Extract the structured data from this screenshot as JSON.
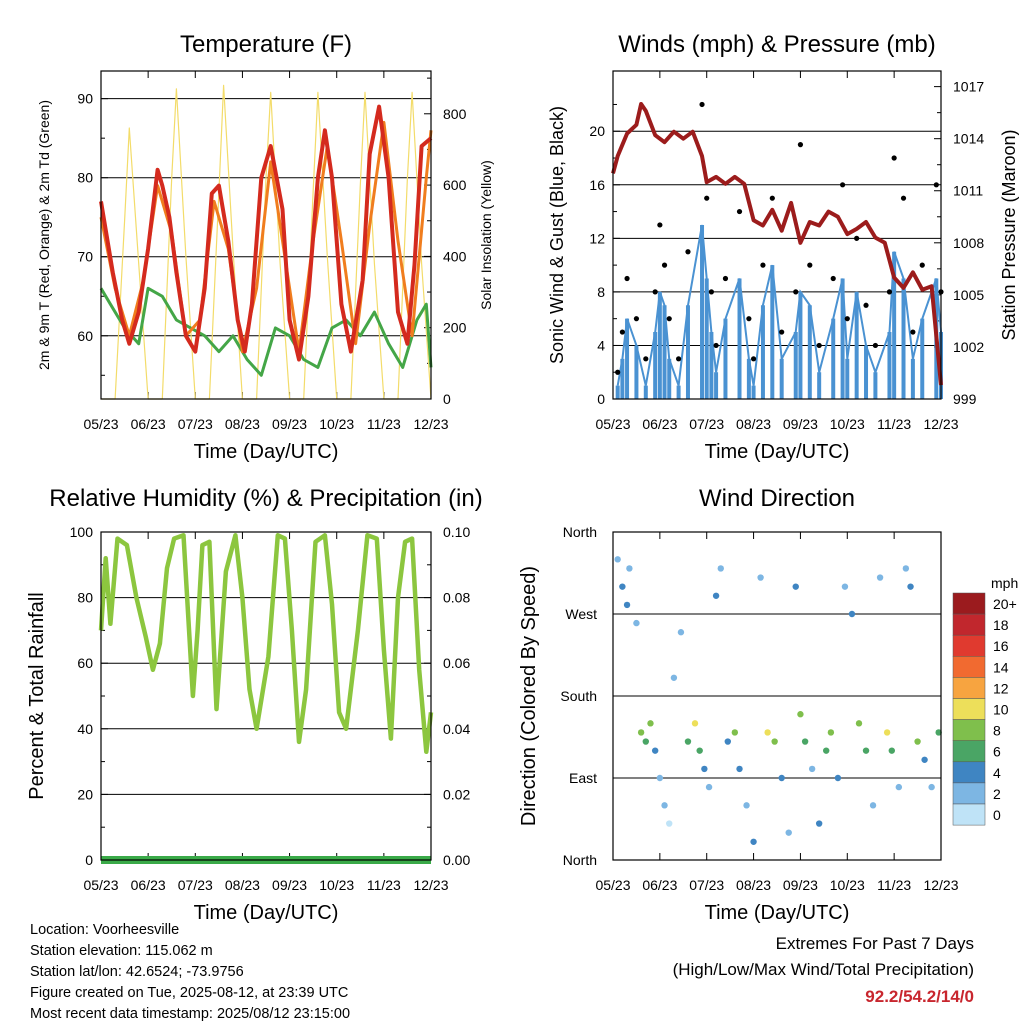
{
  "chart_data": [
    {
      "type": "line",
      "title": "Temperature (F)",
      "xlabel": "Time (Day/UTC)",
      "ylabel": "2m & 9m T (Red, Orange) & 2m Td (Green)",
      "y2label": "Solar Insolation (Yellow)",
      "x_ticks": [
        "05/23",
        "06/23",
        "07/23",
        "08/23",
        "09/23",
        "10/23",
        "11/23",
        "12/23"
      ],
      "ylim": [
        52,
        93.5
      ],
      "y_ticks": [
        "60",
        "70",
        "80",
        "90"
      ],
      "y2lim": [
        0,
        920
      ],
      "y2_ticks": [
        "0",
        "200",
        "400",
        "600",
        "800"
      ],
      "series": [
        {
          "color": "#d42a1e",
          "x": [
            0,
            0.25,
            0.45,
            0.6,
            0.8,
            1.0,
            1.2,
            1.3,
            1.45,
            1.6,
            1.8,
            2.0,
            2.2,
            2.35,
            2.5,
            2.7,
            2.9,
            3.05,
            3.2,
            3.4,
            3.6,
            3.85,
            4.0,
            4.2,
            4.4,
            4.6,
            4.75,
            4.9,
            5.1,
            5.3,
            5.55,
            5.7,
            5.9,
            6.1,
            6.3,
            6.5,
            6.65,
            6.8,
            7.0
          ],
          "values": [
            77,
            68,
            62,
            59,
            63,
            71,
            81,
            79,
            75,
            68,
            60,
            58,
            66,
            78,
            79,
            72,
            62,
            58,
            64,
            80,
            84,
            76,
            62,
            57,
            65,
            80,
            86,
            80,
            64,
            58,
            67,
            83,
            89,
            80,
            63,
            59,
            69,
            84,
            85
          ]
        },
        {
          "color": "#f07d1e",
          "x": [
            0,
            0.3,
            0.6,
            0.9,
            1.2,
            1.5,
            1.8,
            2.1,
            2.4,
            2.7,
            3.0,
            3.3,
            3.6,
            3.9,
            4.2,
            4.5,
            4.8,
            5.1,
            5.4,
            5.7,
            6.0,
            6.3,
            6.6,
            6.9,
            7.0
          ],
          "values": [
            75,
            66,
            60,
            67,
            79,
            73,
            60,
            62,
            77,
            71,
            58,
            66,
            82,
            70,
            58,
            72,
            84,
            72,
            59,
            74,
            87,
            72,
            60,
            80,
            86
          ]
        },
        {
          "color": "#44a647",
          "x": [
            0,
            0.2,
            0.5,
            0.8,
            1.0,
            1.3,
            1.6,
            1.9,
            2.2,
            2.5,
            2.8,
            3.1,
            3.4,
            3.7,
            4.0,
            4.3,
            4.6,
            4.9,
            5.2,
            5.5,
            5.8,
            6.1,
            6.4,
            6.7,
            6.9,
            7.0
          ],
          "values": [
            66,
            64,
            61,
            59,
            66,
            65,
            62,
            61,
            60,
            58,
            60,
            57,
            55,
            61,
            60,
            57,
            56,
            61,
            62,
            60,
            63,
            59,
            56,
            62,
            64,
            56
          ]
        },
        {
          "color": "#f3dc6a",
          "x": [
            0,
            0.3,
            0.5,
            0.6,
            0.8,
            1.0,
            1.3,
            1.5,
            1.6,
            1.8,
            2.0,
            2.3,
            2.5,
            2.6,
            2.8,
            3.0,
            3.3,
            3.5,
            3.6,
            3.8,
            4.0,
            4.3,
            4.5,
            4.6,
            4.8,
            5.0,
            5.3,
            5.5,
            5.6,
            5.8,
            6.0,
            6.3,
            6.5,
            6.6,
            6.8,
            7.0
          ],
          "values": [
            0,
            0,
            500,
            760,
            380,
            0,
            0,
            620,
            870,
            400,
            0,
            0,
            580,
            880,
            420,
            0,
            0,
            620,
            860,
            380,
            0,
            0,
            580,
            860,
            400,
            0,
            0,
            600,
            860,
            380,
            0,
            0,
            620,
            860,
            380,
            0
          ],
          "axis": "right"
        }
      ]
    },
    {
      "type": "scatter",
      "title": "Winds (mph) & Pressure (mb)",
      "xlabel": "Time (Day/UTC)",
      "ylabel": "Sonic Wind & Gust (Blue, Black)",
      "y2label": "Station Pressure (Maroon)",
      "x_ticks": [
        "05/23",
        "06/23",
        "07/23",
        "08/23",
        "09/23",
        "10/23",
        "11/23",
        "12/23"
      ],
      "ylim": [
        0,
        24.5
      ],
      "y_ticks": [
        "0",
        "4",
        "8",
        "12",
        "16",
        "20"
      ],
      "y2lim": [
        999,
        1017.9
      ],
      "y2_ticks": [
        "999",
        "1002",
        "1005",
        "1008",
        "1011",
        "1014",
        "1017"
      ],
      "series": [
        {
          "color": "#000000",
          "x": [
            0.1,
            0.2,
            0.3,
            0.5,
            0.7,
            0.9,
            1.0,
            1.1,
            1.2,
            1.4,
            1.6,
            1.9,
            2.0,
            2.1,
            2.2,
            2.4,
            2.7,
            2.9,
            3.0,
            3.2,
            3.4,
            3.6,
            3.9,
            4.0,
            4.2,
            4.4,
            4.7,
            4.9,
            5.0,
            5.2,
            5.4,
            5.6,
            5.9,
            6.0,
            6.2,
            6.4,
            6.6,
            6.9,
            7.0
          ],
          "values": [
            2,
            5,
            9,
            6,
            3,
            8,
            13,
            10,
            6,
            3,
            11,
            22,
            15,
            8,
            4,
            9,
            14,
            6,
            3,
            10,
            15,
            5,
            8,
            19,
            10,
            4,
            9,
            16,
            6,
            12,
            7,
            4,
            8,
            18,
            15,
            5,
            10,
            16,
            8
          ]
        },
        {
          "color": "#4a92d2",
          "x": [
            0.1,
            0.2,
            0.3,
            0.5,
            0.7,
            0.9,
            1.0,
            1.1,
            1.2,
            1.4,
            1.6,
            1.9,
            2.0,
            2.1,
            2.2,
            2.4,
            2.7,
            2.9,
            3.0,
            3.2,
            3.4,
            3.6,
            3.9,
            4.0,
            4.2,
            4.4,
            4.7,
            4.9,
            5.0,
            5.2,
            5.4,
            5.6,
            5.9,
            6.0,
            6.2,
            6.4,
            6.6,
            6.9,
            7.0
          ],
          "values": [
            1,
            3,
            6,
            4,
            1,
            5,
            8,
            7,
            3,
            1,
            7,
            13,
            9,
            5,
            2,
            6,
            9,
            3,
            1,
            7,
            10,
            3,
            5,
            8,
            7,
            2,
            6,
            9,
            3,
            8,
            4,
            2,
            5,
            11,
            9,
            3,
            6,
            9,
            5
          ]
        },
        {
          "color": "#9c1c1c",
          "x": [
            0,
            0.1,
            0.3,
            0.5,
            0.6,
            0.7,
            0.9,
            1.1,
            1.3,
            1.5,
            1.7,
            1.9,
            2.0,
            2.2,
            2.4,
            2.6,
            2.8,
            3.0,
            3.2,
            3.4,
            3.6,
            3.8,
            4.0,
            4.2,
            4.4,
            4.6,
            4.8,
            5.0,
            5.2,
            5.4,
            5.6,
            5.8,
            6.0,
            6.2,
            6.4,
            6.6,
            6.8,
            7.0
          ],
          "values": [
            1012,
            1013,
            1014.3,
            1014.8,
            1016,
            1015.6,
            1014.2,
            1013.8,
            1014.4,
            1014,
            1014.4,
            1013,
            1011.5,
            1011.8,
            1011.4,
            1011.8,
            1011.4,
            1009.3,
            1009,
            1009.9,
            1008.7,
            1010.3,
            1008,
            1009.2,
            1009,
            1009.8,
            1009.5,
            1008.5,
            1008.8,
            1009.2,
            1008.3,
            1008,
            1006,
            1005.4,
            1006.3,
            1005.3,
            1005.5,
            999.8
          ]
        }
      ]
    },
    {
      "type": "line",
      "title": "Relative Humidity (%) & Precipitation (in)",
      "xlabel": "Time (Day/UTC)",
      "ylabel": "Percent & Total Rainfall",
      "x_ticks": [
        "05/23",
        "06/23",
        "07/23",
        "08/23",
        "09/23",
        "10/23",
        "11/23",
        "12/23"
      ],
      "ylim": [
        0,
        100
      ],
      "y_ticks": [
        "0",
        "20",
        "40",
        "60",
        "80",
        "100"
      ],
      "y2lim": [
        0,
        0.1
      ],
      "y2_ticks": [
        "0.00",
        "0.02",
        "0.04",
        "0.06",
        "0.08",
        "0.10"
      ],
      "series": [
        {
          "color": "#8cc63f",
          "x": [
            0,
            0.1,
            0.2,
            0.35,
            0.55,
            0.75,
            0.95,
            1.1,
            1.25,
            1.4,
            1.55,
            1.75,
            1.95,
            2.05,
            2.15,
            2.3,
            2.45,
            2.65,
            2.85,
            3.0,
            3.15,
            3.3,
            3.55,
            3.75,
            3.9,
            4.05,
            4.2,
            4.35,
            4.55,
            4.75,
            4.9,
            5.05,
            5.2,
            5.45,
            5.65,
            5.85,
            6.0,
            6.15,
            6.3,
            6.45,
            6.6,
            6.75,
            6.9,
            7.0
          ],
          "values": [
            70,
            92,
            72,
            98,
            96,
            80,
            68,
            58,
            66,
            89,
            98,
            99,
            50,
            70,
            96,
            97,
            46,
            88,
            99,
            80,
            52,
            40,
            62,
            99,
            98,
            70,
            36,
            52,
            97,
            99,
            78,
            45,
            40,
            70,
            99,
            98,
            64,
            37,
            80,
            97,
            98,
            58,
            33,
            45
          ]
        },
        {
          "color": "#3aaa48",
          "x": [
            0,
            7.0
          ],
          "values": [
            0,
            0
          ],
          "axis": "right"
        }
      ]
    },
    {
      "type": "scatter",
      "title": "Wind Direction",
      "xlabel": "Time (Day/UTC)",
      "ylabel": "Direction (Colored By Speed)",
      "x_ticks": [
        "05/23",
        "06/23",
        "07/23",
        "08/23",
        "09/23",
        "10/23",
        "11/23",
        "12/23"
      ],
      "y_ticks": [
        "North",
        "East",
        "South",
        "West",
        "North"
      ],
      "legend_title": "mph",
      "legend": [
        "20+",
        "18",
        "16",
        "14",
        "12",
        "10",
        "8",
        "6",
        "4",
        "2",
        "0"
      ],
      "legend_colors": [
        "#9b1b1e",
        "#c1272d",
        "#e03a2f",
        "#f16a30",
        "#f7a440",
        "#eddf5a",
        "#7fbf4c",
        "#4aa565",
        "#3f85c2",
        "#7db6e3",
        "#bfe3f7"
      ],
      "points": [
        {
          "t": 0.1,
          "d": 330,
          "s": 2
        },
        {
          "t": 0.2,
          "d": 300,
          "s": 4
        },
        {
          "t": 0.3,
          "d": 280,
          "s": 4
        },
        {
          "t": 0.35,
          "d": 320,
          "s": 2
        },
        {
          "t": 0.5,
          "d": 260,
          "s": 2
        },
        {
          "t": 0.6,
          "d": 140,
          "s": 8
        },
        {
          "t": 0.7,
          "d": 130,
          "s": 6
        },
        {
          "t": 0.8,
          "d": 150,
          "s": 8
        },
        {
          "t": 0.9,
          "d": 120,
          "s": 4
        },
        {
          "t": 1.0,
          "d": 90,
          "s": 2
        },
        {
          "t": 1.1,
          "d": 60,
          "s": 2
        },
        {
          "t": 1.2,
          "d": 40,
          "s": 0
        },
        {
          "t": 1.3,
          "d": 200,
          "s": 2
        },
        {
          "t": 1.45,
          "d": 250,
          "s": 2
        },
        {
          "t": 1.6,
          "d": 130,
          "s": 6
        },
        {
          "t": 1.75,
          "d": 150,
          "s": 10
        },
        {
          "t": 1.85,
          "d": 120,
          "s": 6
        },
        {
          "t": 1.95,
          "d": 100,
          "s": 4
        },
        {
          "t": 2.05,
          "d": 80,
          "s": 2
        },
        {
          "t": 2.2,
          "d": 290,
          "s": 4
        },
        {
          "t": 2.3,
          "d": 320,
          "s": 2
        },
        {
          "t": 2.45,
          "d": 130,
          "s": 4
        },
        {
          "t": 2.6,
          "d": 140,
          "s": 8
        },
        {
          "t": 2.7,
          "d": 100,
          "s": 4
        },
        {
          "t": 2.85,
          "d": 60,
          "s": 2
        },
        {
          "t": 3.0,
          "d": 20,
          "s": 4
        },
        {
          "t": 3.15,
          "d": 310,
          "s": 2
        },
        {
          "t": 3.3,
          "d": 140,
          "s": 10
        },
        {
          "t": 3.45,
          "d": 130,
          "s": 8
        },
        {
          "t": 3.6,
          "d": 90,
          "s": 4
        },
        {
          "t": 3.75,
          "d": 30,
          "s": 2
        },
        {
          "t": 3.9,
          "d": 300,
          "s": 4
        },
        {
          "t": 4.0,
          "d": 160,
          "s": 8
        },
        {
          "t": 4.1,
          "d": 130,
          "s": 6
        },
        {
          "t": 4.25,
          "d": 100,
          "s": 2
        },
        {
          "t": 4.4,
          "d": 40,
          "s": 4
        },
        {
          "t": 4.55,
          "d": 120,
          "s": 6
        },
        {
          "t": 4.65,
          "d": 140,
          "s": 8
        },
        {
          "t": 4.8,
          "d": 90,
          "s": 4
        },
        {
          "t": 4.95,
          "d": 300,
          "s": 2
        },
        {
          "t": 5.1,
          "d": 270,
          "s": 4
        },
        {
          "t": 5.25,
          "d": 150,
          "s": 8
        },
        {
          "t": 5.4,
          "d": 120,
          "s": 6
        },
        {
          "t": 5.55,
          "d": 60,
          "s": 2
        },
        {
          "t": 5.7,
          "d": 310,
          "s": 2
        },
        {
          "t": 5.85,
          "d": 140,
          "s": 10
        },
        {
          "t": 5.95,
          "d": 120,
          "s": 6
        },
        {
          "t": 6.1,
          "d": 80,
          "s": 2
        },
        {
          "t": 6.25,
          "d": 320,
          "s": 2
        },
        {
          "t": 6.35,
          "d": 300,
          "s": 4
        },
        {
          "t": 6.5,
          "d": 130,
          "s": 8
        },
        {
          "t": 6.65,
          "d": 110,
          "s": 4
        },
        {
          "t": 6.8,
          "d": 80,
          "s": 2
        },
        {
          "t": 6.95,
          "d": 140,
          "s": 6
        }
      ]
    }
  ],
  "info": {
    "location": "Location: Voorheesville",
    "elevation": "Station elevation: 115.062 m",
    "latlon": "Station lat/lon: 42.6524; -73.9756",
    "created": "Figure created on Tue, 2025-08-12, at 23:39 UTC",
    "recent": "Most recent data timestamp: 2025/08/12 23:15:00"
  },
  "extremes": {
    "line1": "Extremes For Past 7 Days",
    "line2": "(High/Low/Max Wind/Total Precipitation)",
    "values": "92.2/54.2/14/0"
  }
}
